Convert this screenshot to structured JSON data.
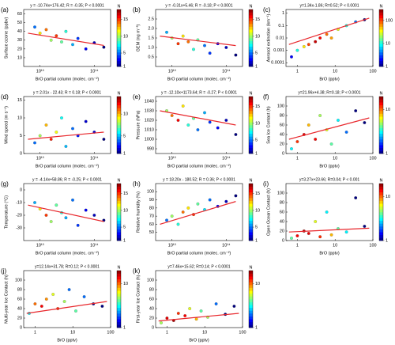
{
  "chart_data": [
    {
      "type": "scatter",
      "label": "(a)",
      "title": "y = -10.74x+176.42; R = -0.35; P < 0.0001",
      "xlabel": "BrO partial column (molec. cm⁻²)",
      "ylabel": "Surface ozone (ppbv)",
      "xlog": true,
      "ylog": false,
      "xlim": [
        5000000000000.0,
        200000000000000.0
      ],
      "ylim": [
        0,
        65
      ],
      "xticks": [
        {
          "value": 10000000000000.0,
          "label": "10¹³"
        },
        {
          "value": 100000000000000.0,
          "label": "10¹⁴"
        }
      ],
      "yticks": [
        10,
        20,
        30,
        40,
        50,
        60
      ],
      "x": [
        8000000000000.0,
        10000000000000.0,
        13000000000000.0,
        16000000000000.0,
        20000000000000.0,
        25000000000000.0,
        30000000000000.0,
        40000000000000.0,
        50000000000000.0,
        70000000000000.0,
        100000000000000.0,
        150000000000000.0
      ],
      "y": [
        45,
        38,
        42,
        30,
        35,
        28,
        40,
        25,
        32,
        20,
        27,
        22
      ],
      "density": [
        5,
        12,
        14,
        10,
        15,
        9,
        8,
        6,
        4,
        3,
        2,
        1
      ],
      "fit": {
        "x": [
          6000000000000.0,
          150000000000000.0
        ],
        "y": [
          38,
          24
        ],
        "color": "#e8262b"
      },
      "colorbar": {
        "label": "N",
        "log": false,
        "lim": [
          1,
          18
        ],
        "ticks": [
          1,
          5,
          10,
          15
        ]
      }
    },
    {
      "type": "scatter",
      "label": "(b)",
      "title": "y = -0.31x+5.46; R = -0.18; P < 0.0001",
      "xlabel": "BrO partial column (molec. cm⁻²)",
      "ylabel": "GEM (ng m⁻³)",
      "xlog": true,
      "ylog": false,
      "xlim": [
        5000000000000.0,
        200000000000000.0
      ],
      "ylim": [
        0,
        3
      ],
      "xticks": [
        {
          "value": 10000000000000.0,
          "label": "10¹³"
        },
        {
          "value": 100000000000000.0,
          "label": "10¹⁴"
        }
      ],
      "yticks": [
        0.5,
        {
          "value": 1,
          "label": "1.0"
        },
        1.5,
        {
          "value": 2,
          "label": "2.0"
        },
        2.5
      ],
      "x": [
        8000000000000.0,
        10000000000000.0,
        13000000000000.0,
        16000000000000.0,
        20000000000000.0,
        25000000000000.0,
        30000000000000.0,
        40000000000000.0,
        50000000000000.0,
        70000000000000.0,
        100000000000000.0,
        150000000000000.0
      ],
      "y": [
        1.8,
        1.5,
        1.2,
        1.6,
        1.3,
        0.9,
        1.4,
        1.1,
        0.7,
        1.2,
        1.0,
        0.6
      ],
      "density": [
        6,
        10,
        15,
        12,
        14,
        8,
        9,
        5,
        4,
        3,
        2,
        1
      ],
      "fit": {
        "x": [
          6000000000000.0,
          150000000000000.0
        ],
        "y": [
          1.6,
          1.1
        ],
        "color": "#e8262b"
      },
      "colorbar": {
        "label": "N",
        "log": false,
        "lim": [
          1,
          18
        ],
        "ticks": [
          1,
          5,
          10,
          15
        ]
      }
    },
    {
      "type": "scatter",
      "label": "(c)",
      "title": "y=1.34x-1.86; R=0.52; P < 0.0001",
      "xlabel": "BrO (pptv)",
      "ylabel": "Aerosol extinction (km⁻¹)",
      "xlog": true,
      "ylog": true,
      "xlim": [
        0.5,
        100
      ],
      "ylim": [
        5e-05,
        2
      ],
      "xticks": [
        1,
        10,
        100
      ],
      "yticks": [
        0.0001,
        0.001,
        0.01,
        0.1,
        1
      ],
      "x": [
        0.7,
        1,
        1.5,
        2,
        3,
        4,
        6,
        8,
        12,
        20,
        35,
        60
      ],
      "y": [
        0.0003,
        0.001,
        0.002,
        0.003,
        0.005,
        0.01,
        0.02,
        0.01,
        0.05,
        0.1,
        0.2,
        0.3
      ],
      "density": [
        2,
        10,
        40,
        100,
        200,
        150,
        80,
        60,
        30,
        10,
        4,
        1
      ],
      "fit": {
        "x": [
          0.6,
          80
        ],
        "y": [
          0.003,
          0.4
        ],
        "color": "#e8262b"
      },
      "colorbar": {
        "label": "N",
        "log": true,
        "lim": [
          1,
          300
        ],
        "ticks": [
          1,
          10,
          100
        ]
      }
    },
    {
      "type": "scatter",
      "label": "(d)",
      "title": "y = 2.01x - 22.43; R = 0.18; P < 0.0001",
      "xlabel": "BrO partial column (molec. cm⁻²)",
      "ylabel": "Wind speed (m s⁻¹)",
      "xlog": true,
      "ylog": false,
      "xlim": [
        5000000000000.0,
        200000000000000.0
      ],
      "ylim": [
        0,
        16
      ],
      "xticks": [
        {
          "value": 10000000000000.0,
          "label": "10¹³"
        },
        {
          "value": 100000000000000.0,
          "label": "10¹⁴"
        }
      ],
      "yticks": [
        0,
        5,
        10,
        15
      ],
      "x": [
        8000000000000.0,
        10000000000000.0,
        13000000000000.0,
        16000000000000.0,
        20000000000000.0,
        25000000000000.0,
        30000000000000.0,
        40000000000000.0,
        50000000000000.0,
        70000000000000.0,
        100000000000000.0,
        150000000000000.0
      ],
      "y": [
        3,
        5,
        8,
        4,
        6,
        10,
        2,
        7,
        5,
        9,
        6,
        4
      ],
      "density": [
        4,
        8,
        10,
        12,
        9,
        6,
        5,
        4,
        3,
        2,
        2,
        1
      ],
      "fit": {
        "x": [
          6000000000000.0,
          150000000000000.0
        ],
        "y": [
          4,
          6
        ],
        "color": "#e8262b"
      },
      "colorbar": {
        "label": "N",
        "log": false,
        "lim": [
          1,
          14
        ],
        "ticks": [
          1,
          5,
          10
        ]
      }
    },
    {
      "type": "scatter",
      "label": "(e)",
      "title": "y = -12.10x+1173.64; R = -0.27; P < 0.0001",
      "xlabel": "BrO partial column (molec. cm⁻²)",
      "ylabel": "Pressure (hPa)",
      "xlog": true,
      "ylog": false,
      "xlim": [
        5000000000000.0,
        200000000000000.0
      ],
      "ylim": [
        985,
        1045
      ],
      "xticks": [
        {
          "value": 10000000000000.0,
          "label": "10¹³"
        },
        {
          "value": 100000000000000.0,
          "label": "10¹⁴"
        }
      ],
      "yticks": [
        990,
        1000,
        1010,
        1020,
        1030,
        1040
      ],
      "x": [
        8000000000000.0,
        10000000000000.0,
        13000000000000.0,
        16000000000000.0,
        20000000000000.0,
        25000000000000.0,
        30000000000000.0,
        40000000000000.0,
        50000000000000.0,
        70000000000000.0,
        100000000000000.0,
        150000000000000.0
      ],
      "y": [
        1030,
        1025,
        1020,
        1035,
        1015,
        1022,
        1010,
        1028,
        1018,
        1012,
        1020,
        1005
      ],
      "density": [
        10,
        14,
        16,
        12,
        8,
        9,
        5,
        6,
        4,
        3,
        2,
        1
      ],
      "fit": {
        "x": [
          6000000000000.0,
          150000000000000.0
        ],
        "y": [
          1030,
          1015
        ],
        "color": "#e8262b"
      },
      "colorbar": {
        "label": "N",
        "log": false,
        "lim": [
          1,
          18
        ],
        "ticks": [
          1,
          5,
          10,
          15
        ]
      }
    },
    {
      "type": "scatter",
      "label": "(f)",
      "title": "y=21.96x+4.38; R=0.18; P < 0.0001",
      "xlabel": "BrO (pptv)",
      "ylabel": "Sea Ice Contact (h)",
      "xlog": true,
      "ylog": false,
      "xlim": [
        0.5,
        100
      ],
      "ylim": [
        0,
        120
      ],
      "xticks": [
        1,
        10,
        100
      ],
      "yticks": [
        0,
        20,
        40,
        60,
        80,
        100
      ],
      "x": [
        0.7,
        1,
        1.5,
        2,
        3,
        4,
        6,
        8,
        12,
        20,
        35,
        60
      ],
      "y": [
        10,
        25,
        40,
        60,
        30,
        80,
        50,
        20,
        70,
        45,
        90,
        65
      ],
      "density": [
        3,
        12,
        15,
        8,
        14,
        5,
        6,
        4,
        3,
        2,
        1,
        1
      ],
      "fit": {
        "x": [
          0.6,
          80
        ],
        "y": [
          30,
          75
        ],
        "color": "#e8262b"
      },
      "colorbar": {
        "label": "N",
        "log": true,
        "lim": [
          1,
          20
        ],
        "ticks": [
          1,
          10
        ]
      }
    },
    {
      "type": "scatter",
      "label": "(g)",
      "title": "y = -4.14x+58.86; R = -0.25; P < 0.0001",
      "xlabel": "BrO partial column (molec. cm⁻²)",
      "ylabel": "Temperature (°C)",
      "xlog": true,
      "ylog": false,
      "xlim": [
        5000000000000.0,
        200000000000000.0
      ],
      "ylim": [
        -40,
        5
      ],
      "xticks": [
        {
          "value": 10000000000000.0,
          "label": "10¹³"
        },
        {
          "value": 100000000000000.0,
          "label": "10¹⁴"
        }
      ],
      "yticks": [
        -30,
        -20,
        -10,
        0
      ],
      "x": [
        8000000000000.0,
        10000000000000.0,
        13000000000000.0,
        16000000000000.0,
        20000000000000.0,
        25000000000000.0,
        30000000000000.0,
        40000000000000.0,
        50000000000000.0,
        70000000000000.0,
        100000000000000.0,
        150000000000000.0
      ],
      "y": [
        -10,
        -15,
        -20,
        -25,
        -12,
        -18,
        -22,
        -8,
        -28,
        -16,
        -20,
        -24
      ],
      "density": [
        6,
        12,
        15,
        10,
        9,
        8,
        6,
        5,
        4,
        3,
        2,
        1
      ],
      "fit": {
        "x": [
          6000000000000.0,
          150000000000000.0
        ],
        "y": [
          -12,
          -25
        ],
        "color": "#e8262b"
      },
      "colorbar": {
        "label": "N",
        "log": false,
        "lim": [
          1,
          18
        ],
        "ticks": [
          1,
          5,
          10,
          15
        ]
      }
    },
    {
      "type": "scatter",
      "label": "(h)",
      "title": "y = 18.20x - 180.52; R = 0.36; P < 0.0001",
      "xlabel": "BrO partial column (molec. cm⁻²)",
      "ylabel": "Relative humidity (%)",
      "xlog": true,
      "ylog": false,
      "xlim": [
        5000000000000.0,
        200000000000000.0
      ],
      "ylim": [
        40,
        110
      ],
      "xticks": [
        {
          "value": 10000000000000.0,
          "label": "10¹³"
        },
        {
          "value": 100000000000000.0,
          "label": "10¹⁴"
        }
      ],
      "yticks": [
        50,
        60,
        70,
        80,
        90,
        100
      ],
      "x": [
        8000000000000.0,
        10000000000000.0,
        13000000000000.0,
        16000000000000.0,
        20000000000000.0,
        25000000000000.0,
        30000000000000.0,
        40000000000000.0,
        50000000000000.0,
        70000000000000.0,
        100000000000000.0,
        150000000000000.0
      ],
      "y": [
        65,
        70,
        60,
        75,
        80,
        72,
        85,
        78,
        90,
        82,
        88,
        95
      ],
      "density": [
        5,
        10,
        8,
        14,
        12,
        15,
        9,
        7,
        5,
        3,
        2,
        1
      ],
      "fit": {
        "x": [
          6000000000000.0,
          150000000000000.0
        ],
        "y": [
          60,
          88
        ],
        "color": "#e8262b"
      },
      "colorbar": {
        "label": "N",
        "log": false,
        "lim": [
          1,
          18
        ],
        "ticks": [
          1,
          5,
          10,
          15
        ]
      }
    },
    {
      "type": "scatter",
      "label": "(i)",
      "title": "y=3.27x+23.66; R=0.04; P < 0.001",
      "xlabel": "BrO (pptv)",
      "ylabel": "Open Ocean Contact (h)",
      "xlog": true,
      "ylog": false,
      "xlim": [
        0.5,
        100
      ],
      "ylim": [
        0,
        120
      ],
      "xticks": [
        1,
        10,
        100
      ],
      "yticks": [
        0,
        20,
        40,
        60,
        80,
        100
      ],
      "x": [
        0.7,
        1,
        1.5,
        2,
        3,
        4,
        6,
        8,
        12,
        20,
        35,
        60
      ],
      "y": [
        5,
        10,
        20,
        15,
        40,
        8,
        60,
        12,
        25,
        18,
        90,
        30
      ],
      "density": [
        4,
        14,
        18,
        15,
        6,
        12,
        3,
        8,
        4,
        3,
        1,
        1
      ],
      "fit": {
        "x": [
          0.6,
          80
        ],
        "y": [
          18,
          26
        ],
        "color": "#e8262b"
      },
      "colorbar": {
        "label": "N",
        "log": true,
        "lim": [
          1,
          20
        ],
        "ticks": [
          1,
          10
        ]
      }
    },
    {
      "type": "scatter",
      "label": "(j)",
      "title": "y=12.14x+31.78; R=0.12; P < 0.0001",
      "xlabel": "BrO (pptv)",
      "ylabel": "Multi-year Ice Contact (h)",
      "xlog": true,
      "ylog": false,
      "xlim": [
        0.5,
        100
      ],
      "ylim": [
        0,
        120
      ],
      "xticks": [
        1,
        10,
        100
      ],
      "yticks": [
        0,
        20,
        40,
        60,
        80,
        100
      ],
      "x": [
        0.7,
        1,
        1.5,
        2,
        3,
        4,
        6,
        8,
        12,
        20,
        35,
        60
      ],
      "y": [
        30,
        50,
        45,
        60,
        70,
        40,
        55,
        80,
        35,
        65,
        50,
        45
      ],
      "density": [
        3,
        10,
        14,
        9,
        6,
        12,
        5,
        2,
        4,
        2,
        1,
        1
      ],
      "fit": {
        "x": [
          0.6,
          80
        ],
        "y": [
          30,
          55
        ],
        "color": "#e8262b"
      },
      "colorbar": {
        "label": "N",
        "log": true,
        "lim": [
          1,
          20
        ],
        "ticks": [
          1,
          10
        ]
      }
    },
    {
      "type": "scatter",
      "label": "(k)",
      "title": "y=7.46x+15.62; R=0.14; P < 0.0001",
      "xlabel": "BrO (pptv)",
      "ylabel": "First-year Ice Contact (h)",
      "xlog": true,
      "ylog": false,
      "xlim": [
        0.5,
        100
      ],
      "ylim": [
        0,
        120
      ],
      "xticks": [
        1,
        10,
        100
      ],
      "yticks": [
        0,
        20,
        40,
        60,
        80,
        100
      ],
      "x": [
        0.7,
        1,
        1.5,
        2,
        3,
        4,
        6,
        8,
        12,
        20,
        35,
        60
      ],
      "y": [
        10,
        20,
        15,
        30,
        25,
        40,
        18,
        35,
        22,
        50,
        28,
        45
      ],
      "density": [
        5,
        15,
        18,
        12,
        14,
        6,
        8,
        4,
        5,
        2,
        1,
        1
      ],
      "fit": {
        "x": [
          0.6,
          80
        ],
        "y": [
          14,
          30
        ],
        "color": "#e8262b"
      },
      "colorbar": {
        "label": "N",
        "log": true,
        "lim": [
          1,
          20
        ],
        "ticks": [
          1,
          10
        ]
      }
    }
  ]
}
